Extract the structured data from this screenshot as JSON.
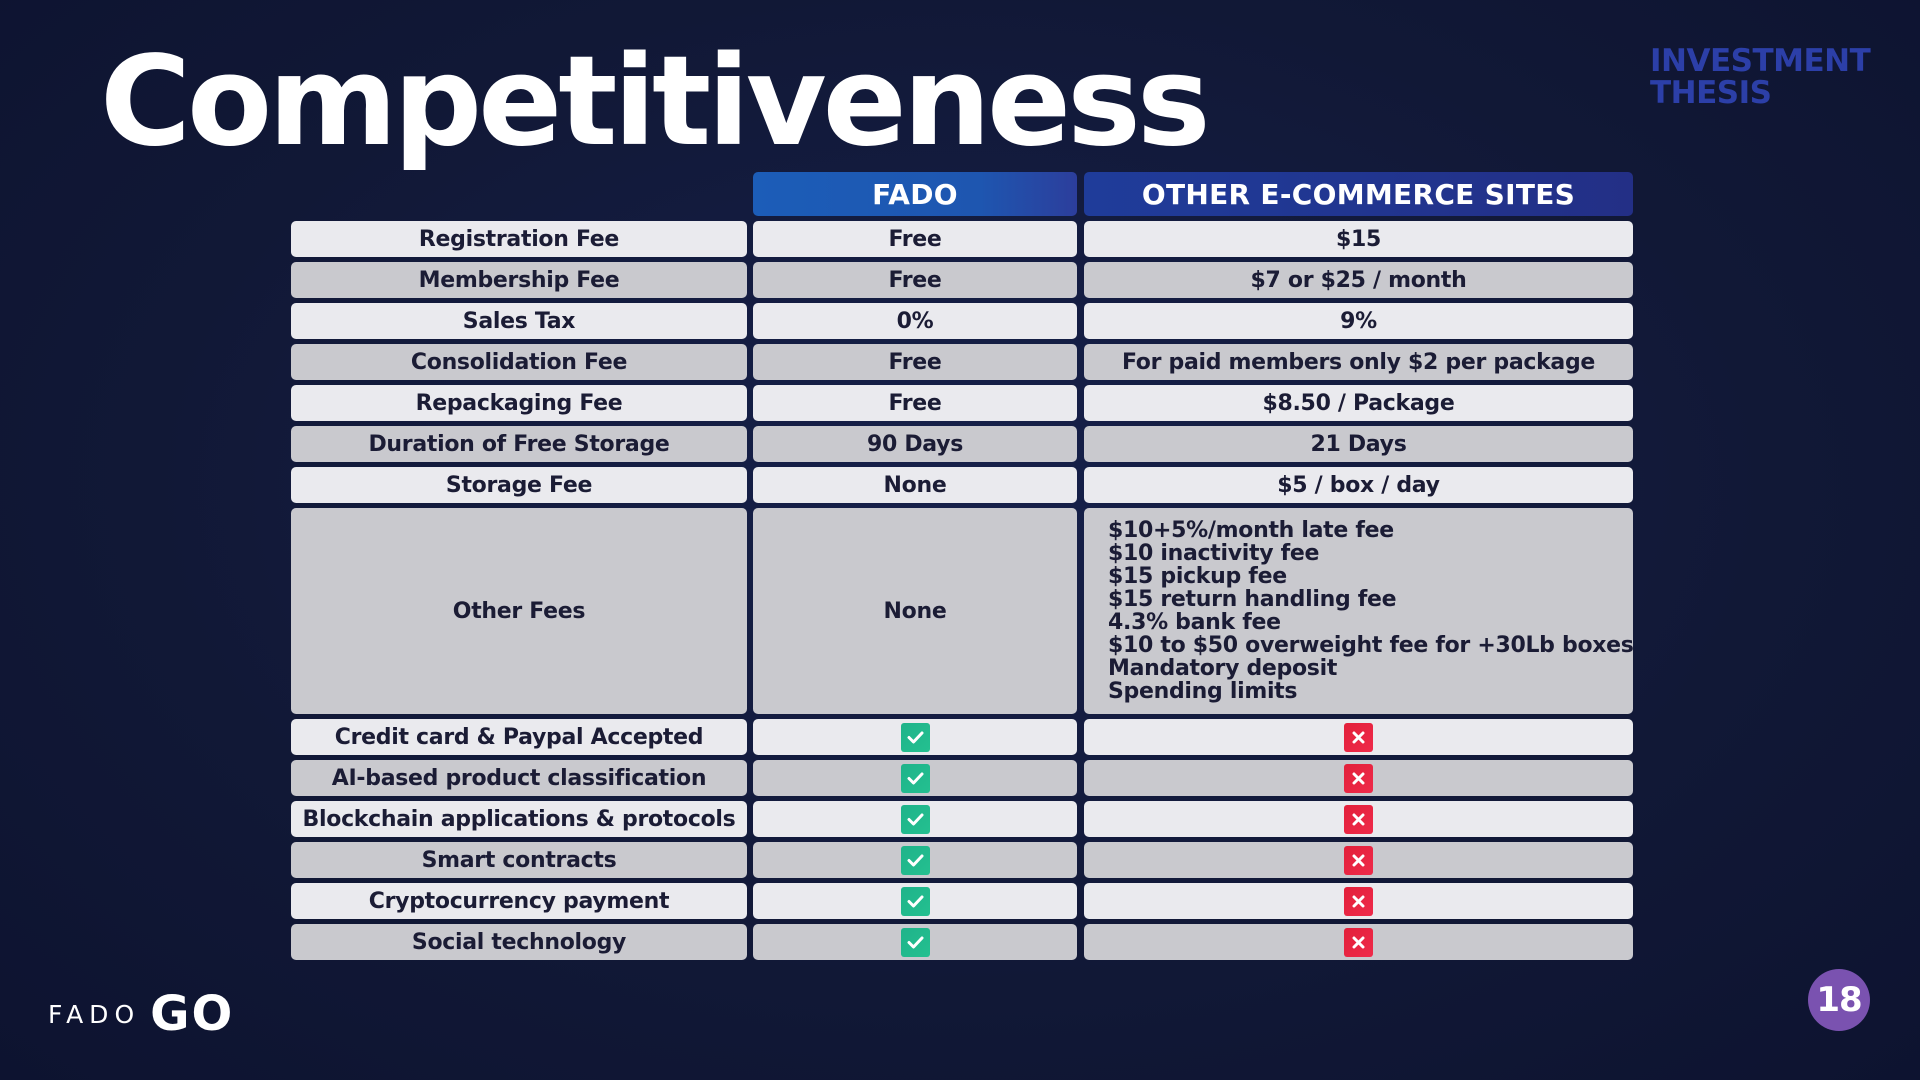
{
  "slide": {
    "title": "Competitiveness",
    "section_tag": "INVESTMENT THESIS",
    "page_number": "18",
    "logo_left": "FADO",
    "logo_right": "GO"
  },
  "table": {
    "headers": [
      "",
      "FADO",
      "OTHER E-COMMERCE SITES"
    ],
    "rows": [
      {
        "label": "Registration Fee",
        "fado": "Free",
        "other": "$15"
      },
      {
        "label": "Membership Fee",
        "fado": "Free",
        "other": "$7 or $25 / month"
      },
      {
        "label": "Sales Tax",
        "fado": "0%",
        "other": "9%"
      },
      {
        "label": "Consolidation Fee",
        "fado": "Free",
        "other": "For paid members only $2 per package"
      },
      {
        "label": "Repackaging Fee",
        "fado": "Free",
        "other": "$8.50 / Package"
      },
      {
        "label": "Duration of Free Storage",
        "fado": "90 Days",
        "other": "21 Days"
      },
      {
        "label": "Storage Fee",
        "fado": "None",
        "other": "$5 / box / day"
      },
      {
        "label": "Other Fees",
        "fado": "None",
        "other_list": [
          "$10+5%/month late fee",
          "$10 inactivity fee",
          "$15 pickup fee",
          "$15 return handling fee",
          "4.3% bank fee",
          "$10 to $50 overweight fee for +30Lb boxes",
          "Mandatory deposit",
          "Spending limits"
        ]
      },
      {
        "label": "Credit card & Paypal Accepted",
        "fado_icon": "check-icon",
        "other_icon": "x-icon"
      },
      {
        "label": "AI-based product classification",
        "fado_icon": "check-icon",
        "other_icon": "x-icon"
      },
      {
        "label": "Blockchain applications & protocols",
        "fado_icon": "check-icon",
        "other_icon": "x-icon"
      },
      {
        "label": "Smart contracts",
        "fado_icon": "check-icon",
        "other_icon": "x-icon"
      },
      {
        "label": "Cryptocurrency payment",
        "fado_icon": "check-icon",
        "other_icon": "x-icon"
      },
      {
        "label": "Social technology",
        "fado_icon": "check-icon",
        "other_icon": "x-icon"
      }
    ]
  },
  "colors": {
    "background": "#121a3a",
    "fado_header": "#1e56b0",
    "other_header": "#232f86",
    "row_light": "#eaeaee",
    "row_dark": "#c9c9ce",
    "check": "#1fb38a",
    "cross": "#e2203a",
    "section_tag": "#2c3fa8",
    "badge": "#7a52b0"
  }
}
